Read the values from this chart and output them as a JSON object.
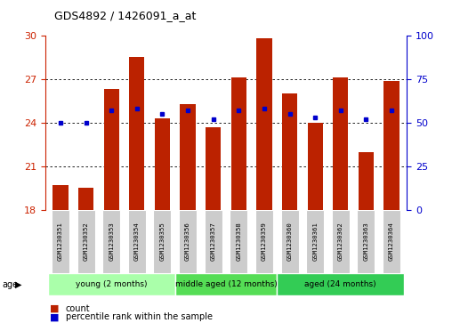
{
  "title": "GDS4892 / 1426091_a_at",
  "categories": [
    "GSM1230351",
    "GSM1230352",
    "GSM1230353",
    "GSM1230354",
    "GSM1230355",
    "GSM1230356",
    "GSM1230357",
    "GSM1230358",
    "GSM1230359",
    "GSM1230360",
    "GSM1230361",
    "GSM1230362",
    "GSM1230363",
    "GSM1230364"
  ],
  "counts": [
    19.7,
    19.5,
    26.3,
    28.5,
    24.3,
    25.3,
    23.7,
    27.1,
    29.8,
    26.0,
    24.0,
    27.1,
    22.0,
    26.9
  ],
  "percentiles": [
    50,
    50,
    57,
    58,
    55,
    57,
    52,
    57,
    58,
    55,
    53,
    57,
    52,
    57
  ],
  "bar_color": "#bb2200",
  "dot_color": "#0000cc",
  "ymin": 18,
  "ymax": 30,
  "yticks": [
    18,
    21,
    24,
    27,
    30
  ],
  "y2min": 0,
  "y2max": 100,
  "y2ticks": [
    0,
    25,
    50,
    75,
    100
  ],
  "groups": [
    {
      "label": "young (2 months)",
      "start": 0,
      "end": 5,
      "color": "#bbffbb"
    },
    {
      "label": "middle aged (12 months)",
      "start": 5,
      "end": 9,
      "color": "#55dd55"
    },
    {
      "label": "aged (24 months)",
      "start": 9,
      "end": 14,
      "color": "#33cc55"
    }
  ],
  "legend_count_label": "count",
  "legend_pct_label": "percentile rank within the sample"
}
